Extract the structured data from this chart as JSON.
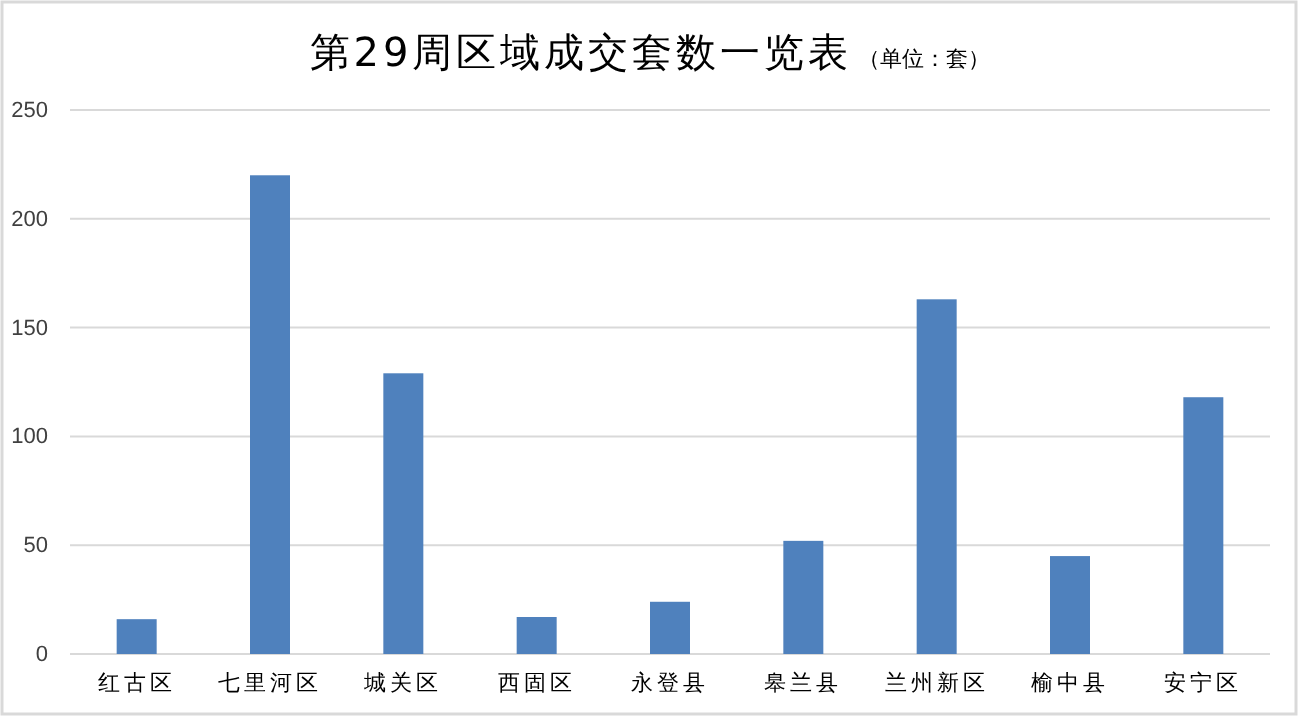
{
  "chart_data": {
    "type": "bar",
    "title": "第29周区域成交套数一览表",
    "subtitle": "（单位：套）",
    "categories": [
      "红古区",
      "七里河区",
      "城关区",
      "西固区",
      "永登县",
      "皋兰县",
      "兰州新区",
      "榆中县",
      "安宁区"
    ],
    "values": [
      16,
      220,
      129,
      17,
      24,
      52,
      163,
      45,
      118
    ],
    "color": "#4f81bd",
    "ylim": [
      0,
      250
    ],
    "yticks": [
      0,
      50,
      100,
      150,
      200,
      250
    ],
    "grid": "y"
  }
}
